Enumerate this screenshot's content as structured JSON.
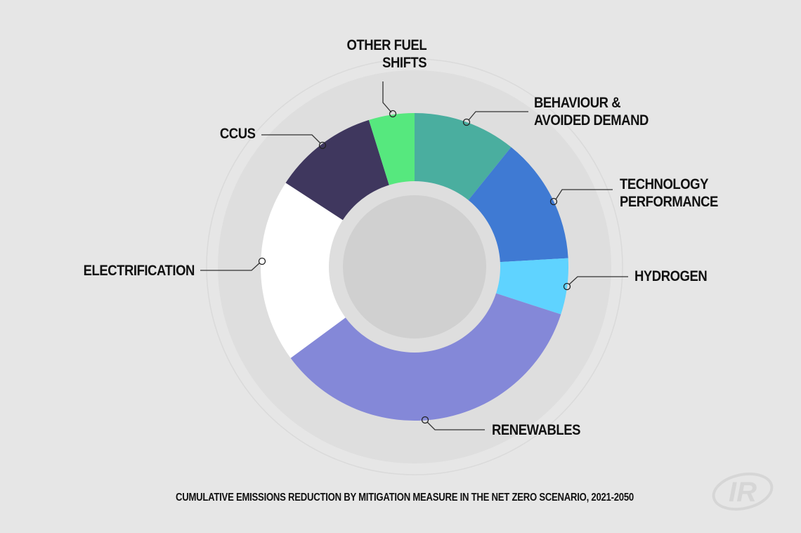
{
  "chart_data": {
    "type": "pie",
    "subtype": "donut",
    "title": "CUMULATIVE EMISSIONS REDUCTION BY MITIGATION MEASURE IN THE NET ZERO SCENARIO, 2021-2050",
    "categories": [
      "Behaviour & Avoided Demand",
      "Technology Performance",
      "Hydrogen",
      "Renewables",
      "Electrification",
      "CCUS",
      "Other Fuel Shifts"
    ],
    "values": [
      10.8,
      13.3,
      5.9,
      34.9,
      19.3,
      11.0,
      4.8
    ],
    "unit": "% share (estimated from slice angles)",
    "colors": [
      "#4aae9f",
      "#3f7ad3",
      "#5fd3ff",
      "#8488d8",
      "#ffffff",
      "#3f375e",
      "#56e87e"
    ],
    "start_angle_deg": 0,
    "direction": "clockwise",
    "legend": "callout labels"
  },
  "labels": {
    "behaviour": [
      "BEHAVIOUR &",
      "AVOIDED DEMAND"
    ],
    "technology": [
      "TECHNOLOGY",
      "PERFORMANCE"
    ],
    "hydrogen": [
      "HYDROGEN"
    ],
    "renewables": [
      "RENEWABLES"
    ],
    "electrification": [
      "ELECTRIFICATION"
    ],
    "ccus": [
      "CCUS"
    ],
    "other_fuel": [
      "OTHER FUEL",
      "SHIFTS"
    ]
  },
  "caption": "CUMULATIVE EMISSIONS REDUCTION BY MITIGATION MEASURE IN THE NET ZERO SCENARIO, 2021-2050",
  "logo": {
    "text": "IR",
    "name": "ir-watermark-logo"
  },
  "theme": {
    "background": "#e6e6e6",
    "ring": "#dedede",
    "hole_ring": "#dedede",
    "hole": "#d0d0d0",
    "outline": "#d8d8d8"
  }
}
